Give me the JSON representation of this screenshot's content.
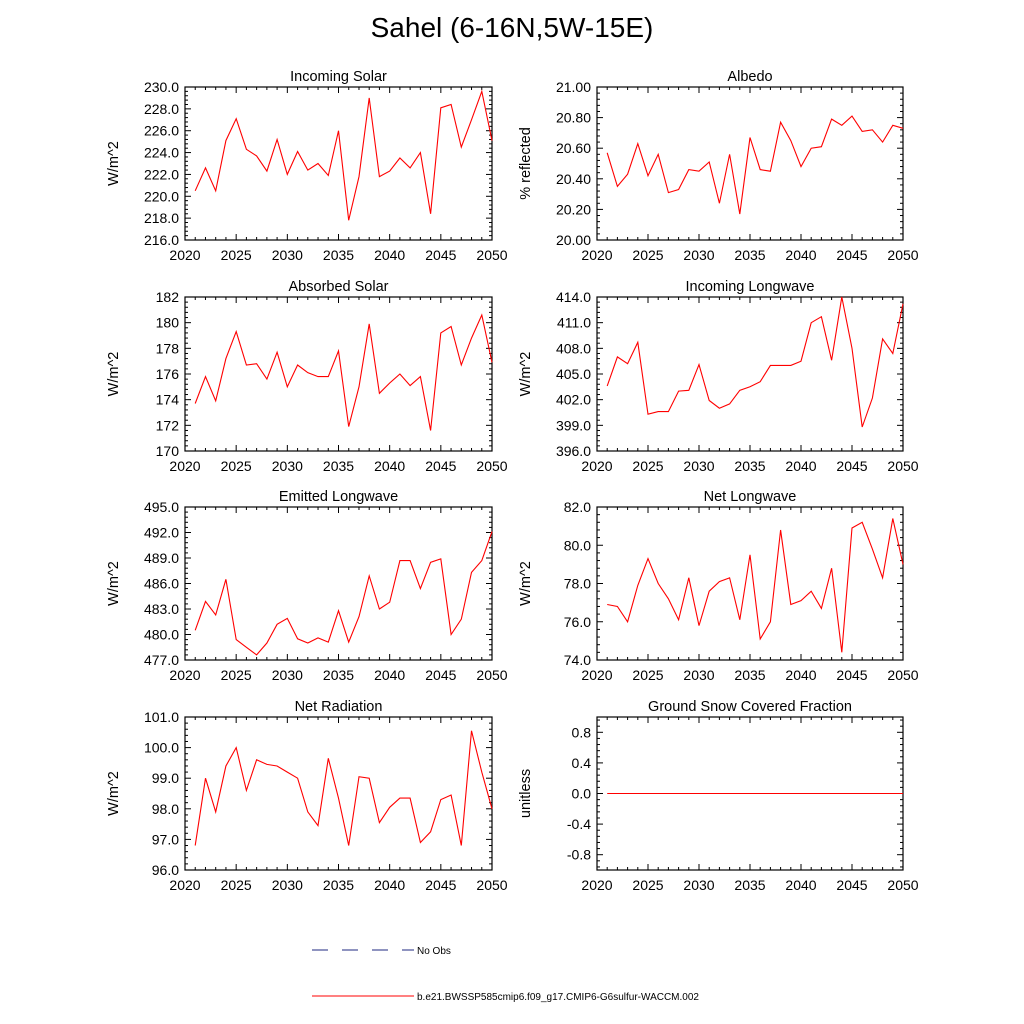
{
  "title": "Sahel (6-16N,5W-15E)",
  "colors": {
    "model_line": "#ff0000",
    "obs_line": "#1f2a80",
    "axis": "#000000"
  },
  "legend": [
    {
      "label": "No Obs",
      "style": "dashed",
      "color": "#1f2a80"
    },
    {
      "label": "b.e21.BWSSP585cmip6.f09_g17.CMIP6-G6sulfur-WACCM.002",
      "style": "solid",
      "color": "#ff0000"
    }
  ],
  "chart_data": [
    {
      "type": "line",
      "title": "Incoming Solar",
      "ylabel": "W/m^2",
      "xlim": [
        2020,
        2050
      ],
      "xticks": [
        2020,
        2025,
        2030,
        2035,
        2040,
        2045,
        2050
      ],
      "ylim": [
        216,
        230
      ],
      "yticks": [
        216,
        218,
        220,
        222,
        224,
        226,
        228,
        230
      ],
      "ydecimals": 1,
      "x": [
        2021,
        2022,
        2023,
        2024,
        2025,
        2026,
        2027,
        2028,
        2029,
        2030,
        2031,
        2032,
        2033,
        2034,
        2035,
        2036,
        2037,
        2038,
        2039,
        2040,
        2041,
        2042,
        2043,
        2044,
        2045,
        2046,
        2047,
        2048,
        2049,
        2050
      ],
      "series": [
        {
          "values": [
            220.5,
            222.6,
            220.5,
            225.1,
            227.1,
            224.3,
            223.7,
            222.3,
            225.2,
            222.0,
            224.1,
            222.4,
            223.0,
            221.9,
            226.0,
            217.8,
            221.8,
            229.0,
            221.8,
            222.3,
            223.5,
            222.6,
            224.0,
            218.4,
            228.1,
            228.4,
            224.5,
            227.0,
            229.6,
            225.1
          ]
        }
      ]
    },
    {
      "type": "line",
      "title": "Albedo",
      "ylabel": "% reflected",
      "xlim": [
        2020,
        2050
      ],
      "xticks": [
        2020,
        2025,
        2030,
        2035,
        2040,
        2045,
        2050
      ],
      "ylim": [
        20.0,
        21.0
      ],
      "yticks": [
        20.0,
        20.2,
        20.4,
        20.6,
        20.8,
        21.0
      ],
      "ydecimals": 2,
      "x": [
        2021,
        2022,
        2023,
        2024,
        2025,
        2026,
        2027,
        2028,
        2029,
        2030,
        2031,
        2032,
        2033,
        2034,
        2035,
        2036,
        2037,
        2038,
        2039,
        2040,
        2041,
        2042,
        2043,
        2044,
        2045,
        2046,
        2047,
        2048,
        2049,
        2050
      ],
      "series": [
        {
          "values": [
            20.57,
            20.35,
            20.43,
            20.63,
            20.42,
            20.56,
            20.31,
            20.33,
            20.46,
            20.45,
            20.51,
            20.24,
            20.56,
            20.17,
            20.67,
            20.46,
            20.45,
            20.77,
            20.65,
            20.48,
            20.6,
            20.61,
            20.79,
            20.75,
            20.81,
            20.71,
            20.72,
            20.64,
            20.75,
            20.73
          ]
        }
      ]
    },
    {
      "type": "line",
      "title": "Absorbed Solar",
      "ylabel": "W/m^2",
      "xlim": [
        2020,
        2050
      ],
      "xticks": [
        2020,
        2025,
        2030,
        2035,
        2040,
        2045,
        2050
      ],
      "ylim": [
        170,
        182
      ],
      "yticks": [
        170,
        172,
        174,
        176,
        178,
        180,
        182
      ],
      "ydecimals": 0,
      "x": [
        2021,
        2022,
        2023,
        2024,
        2025,
        2026,
        2027,
        2028,
        2029,
        2030,
        2031,
        2032,
        2033,
        2034,
        2035,
        2036,
        2037,
        2038,
        2039,
        2040,
        2041,
        2042,
        2043,
        2044,
        2045,
        2046,
        2047,
        2048,
        2049,
        2050
      ],
      "series": [
        {
          "values": [
            173.7,
            175.8,
            173.9,
            177.2,
            179.3,
            176.7,
            176.8,
            175.6,
            177.7,
            175.0,
            176.7,
            176.1,
            175.8,
            175.8,
            177.8,
            171.9,
            175.0,
            179.9,
            174.5,
            175.3,
            176.0,
            175.1,
            175.8,
            171.6,
            179.2,
            179.7,
            176.7,
            178.8,
            180.6,
            176.9
          ]
        }
      ]
    },
    {
      "type": "line",
      "title": "Incoming Longwave",
      "ylabel": "W/m^2",
      "xlim": [
        2020,
        2050
      ],
      "xticks": [
        2020,
        2025,
        2030,
        2035,
        2040,
        2045,
        2050
      ],
      "ylim": [
        396,
        414
      ],
      "yticks": [
        396,
        399,
        402,
        405,
        408,
        411,
        414
      ],
      "ydecimals": 1,
      "x": [
        2021,
        2022,
        2023,
        2024,
        2025,
        2026,
        2027,
        2028,
        2029,
        2030,
        2031,
        2032,
        2033,
        2034,
        2035,
        2036,
        2037,
        2038,
        2039,
        2040,
        2041,
        2042,
        2043,
        2044,
        2045,
        2046,
        2047,
        2048,
        2049,
        2050
      ],
      "series": [
        {
          "values": [
            403.6,
            407.0,
            406.2,
            408.7,
            400.3,
            400.6,
            400.6,
            403.0,
            403.1,
            406.1,
            401.9,
            401.0,
            401.5,
            403.1,
            403.5,
            404.1,
            406.0,
            406.0,
            406.0,
            406.5,
            411.0,
            411.7,
            406.6,
            414.0,
            408.0,
            398.8,
            402.2,
            409.1,
            407.4,
            413.2
          ]
        }
      ]
    },
    {
      "type": "line",
      "title": "Emitted Longwave",
      "ylabel": "W/m^2",
      "xlim": [
        2020,
        2050
      ],
      "xticks": [
        2020,
        2025,
        2030,
        2035,
        2040,
        2045,
        2050
      ],
      "ylim": [
        477,
        495
      ],
      "yticks": [
        477,
        480,
        483,
        486,
        489,
        492,
        495
      ],
      "ydecimals": 1,
      "x": [
        2021,
        2022,
        2023,
        2024,
        2025,
        2026,
        2027,
        2028,
        2029,
        2030,
        2031,
        2032,
        2033,
        2034,
        2035,
        2036,
        2037,
        2038,
        2039,
        2040,
        2041,
        2042,
        2043,
        2044,
        2045,
        2046,
        2047,
        2048,
        2049,
        2050
      ],
      "series": [
        {
          "values": [
            480.5,
            483.9,
            482.3,
            486.5,
            479.4,
            478.5,
            477.6,
            479.0,
            481.2,
            481.9,
            479.5,
            479.0,
            479.6,
            479.1,
            482.8,
            479.1,
            482.1,
            486.9,
            483.0,
            483.8,
            488.7,
            488.7,
            485.4,
            488.5,
            488.9,
            480.0,
            481.8,
            487.3,
            488.7,
            492.1
          ]
        }
      ]
    },
    {
      "type": "line",
      "title": "Net Longwave",
      "ylabel": "W/m^2",
      "xlim": [
        2020,
        2050
      ],
      "xticks": [
        2020,
        2025,
        2030,
        2035,
        2040,
        2045,
        2050
      ],
      "ylim": [
        74,
        82
      ],
      "yticks": [
        74,
        76,
        78,
        80,
        82
      ],
      "ydecimals": 1,
      "x": [
        2021,
        2022,
        2023,
        2024,
        2025,
        2026,
        2027,
        2028,
        2029,
        2030,
        2031,
        2032,
        2033,
        2034,
        2035,
        2036,
        2037,
        2038,
        2039,
        2040,
        2041,
        2042,
        2043,
        2044,
        2045,
        2046,
        2047,
        2048,
        2049,
        2050
      ],
      "series": [
        {
          "values": [
            76.9,
            76.8,
            76.0,
            77.9,
            79.3,
            78.0,
            77.2,
            76.1,
            78.3,
            75.8,
            77.6,
            78.1,
            78.3,
            76.1,
            79.5,
            75.1,
            76.0,
            80.8,
            76.9,
            77.1,
            77.6,
            76.7,
            78.8,
            74.4,
            80.9,
            81.2,
            79.8,
            78.3,
            81.4,
            79.0
          ]
        }
      ]
    },
    {
      "type": "line",
      "title": "Net Radiation",
      "ylabel": "W/m^2",
      "xlim": [
        2020,
        2050
      ],
      "xticks": [
        2020,
        2025,
        2030,
        2035,
        2040,
        2045,
        2050
      ],
      "ylim": [
        96,
        101
      ],
      "yticks": [
        96,
        97,
        98,
        99,
        100,
        101
      ],
      "ydecimals": 1,
      "x": [
        2021,
        2022,
        2023,
        2024,
        2025,
        2026,
        2027,
        2028,
        2029,
        2030,
        2031,
        2032,
        2033,
        2034,
        2035,
        2036,
        2037,
        2038,
        2039,
        2040,
        2041,
        2042,
        2043,
        2044,
        2045,
        2046,
        2047,
        2048,
        2049,
        2050
      ],
      "series": [
        {
          "values": [
            96.8,
            99.0,
            97.9,
            99.4,
            100.0,
            98.6,
            99.6,
            99.45,
            99.4,
            99.2,
            99.0,
            97.9,
            97.45,
            99.65,
            98.35,
            96.8,
            99.05,
            99.0,
            97.55,
            98.05,
            98.35,
            98.35,
            96.9,
            97.25,
            98.3,
            98.45,
            96.8,
            100.55,
            99.2,
            98.0
          ]
        }
      ]
    },
    {
      "type": "line",
      "title": "Ground Snow Covered Fraction",
      "ylabel": "unitless",
      "xlim": [
        2020,
        2050
      ],
      "xticks": [
        2020,
        2025,
        2030,
        2035,
        2040,
        2045,
        2050
      ],
      "ylim": [
        -1.0,
        1.0
      ],
      "yticks": [
        -0.8,
        -0.4,
        0.0,
        0.4,
        0.8
      ],
      "ydecimals": 1,
      "x": [
        2021,
        2050
      ],
      "series": [
        {
          "values": [
            0.0,
            0.0
          ]
        }
      ]
    }
  ]
}
